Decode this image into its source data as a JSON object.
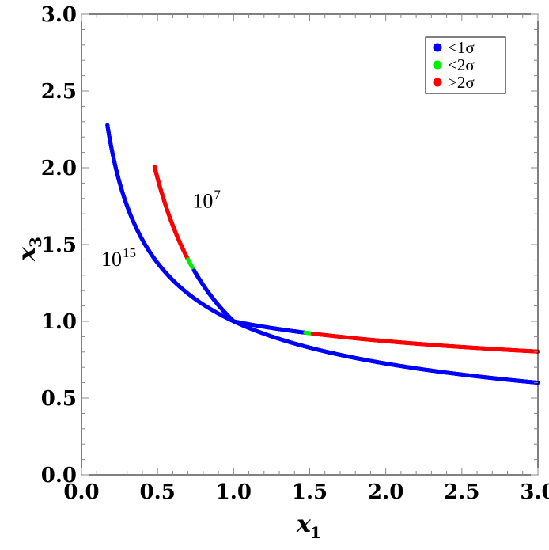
{
  "chart_data": {
    "type": "scatter",
    "xlabel": {
      "base": "x",
      "sub": "1"
    },
    "ylabel": {
      "base": "x",
      "sub": "3"
    },
    "xlim": [
      0.0,
      3.0
    ],
    "ylim": [
      0.0,
      3.0
    ],
    "xticks": [
      "0.0",
      "0.5",
      "1.0",
      "1.5",
      "2.0",
      "2.5",
      "3.0"
    ],
    "yticks": [
      "0.0",
      "0.5",
      "1.0",
      "1.5",
      "2.0",
      "2.5",
      "3.0"
    ],
    "grid": false,
    "legend": {
      "placement": "top-right",
      "entries": [
        {
          "label": "<1σ",
          "color": "#0000ff"
        },
        {
          "label": "<2σ",
          "color": "#00ee00"
        },
        {
          "label": ">2σ",
          "color": "#ff0000"
        }
      ]
    },
    "annotations": [
      {
        "base": "10",
        "sup": "7",
        "x": 0.73,
        "y": 1.74
      },
      {
        "base": "10",
        "sup": "15",
        "x": 0.13,
        "y": 1.36
      }
    ],
    "series": [
      {
        "annotation": "10^15",
        "curve": "x3 = x1^-0.465",
        "x_range": [
          0.17,
          3.0
        ],
        "segments": [
          {
            "x_from": 0.17,
            "x_to": 0.17,
            "color": "#00ee00"
          },
          {
            "x_from": 0.17,
            "x_to": 3.0,
            "color": "#0000ff"
          }
        ]
      },
      {
        "annotation": "10^7",
        "curve": "x3 = x1^-0.20 (x1>1), x1^-0.95 (x1<1)",
        "x_range": [
          0.48,
          3.0
        ],
        "segments": [
          {
            "x_from": 0.48,
            "x_to": 0.7,
            "color": "#ff0000"
          },
          {
            "x_from": 0.7,
            "x_to": 0.74,
            "color": "#00ee00"
          },
          {
            "x_from": 0.74,
            "x_to": 1.47,
            "color": "#0000ff"
          },
          {
            "x_from": 1.47,
            "x_to": 1.52,
            "color": "#00ee00"
          },
          {
            "x_from": 1.52,
            "x_to": 3.0,
            "color": "#ff0000"
          }
        ]
      }
    ]
  }
}
